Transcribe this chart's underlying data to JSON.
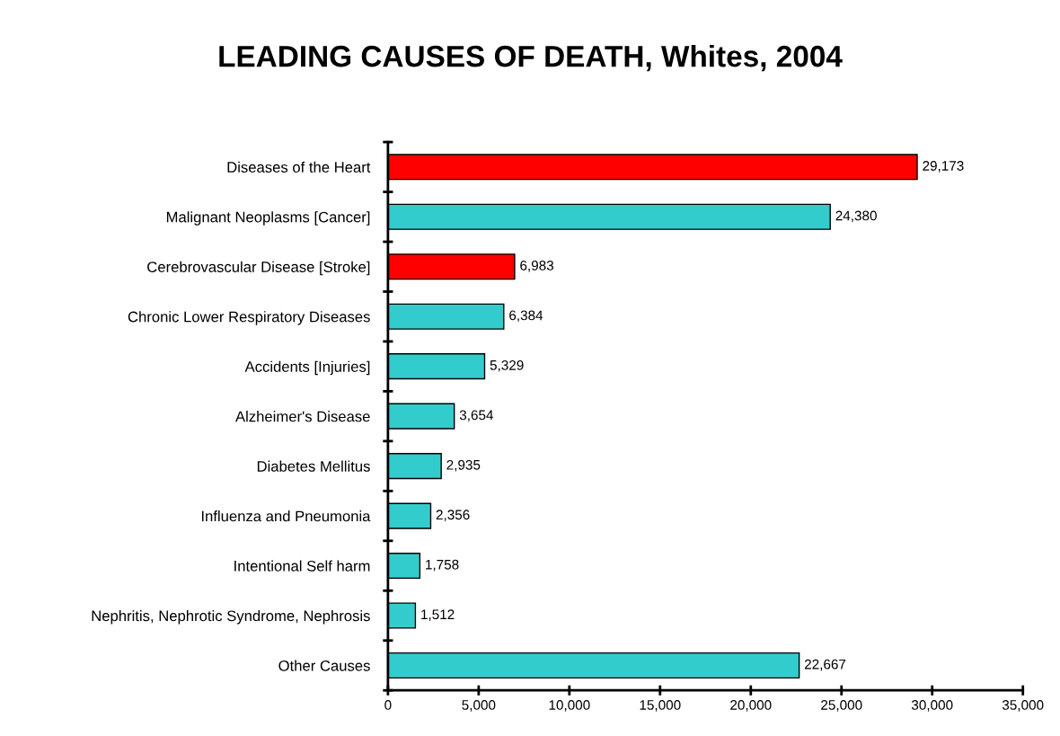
{
  "chart_data": {
    "type": "bar",
    "orientation": "horizontal",
    "title": "LEADING CAUSES OF DEATH, Whites, 2004",
    "categories": [
      "Diseases of the Heart",
      "Malignant Neoplasms [Cancer]",
      "Cerebrovascular Disease [Stroke]",
      "Chronic Lower Respiratory Diseases",
      "Accidents [Injuries]",
      "Alzheimer's Disease",
      "Diabetes Mellitus",
      "Influenza and Pneumonia",
      "Intentional Self harm",
      "Nephritis, Nephrotic Syndrome, Nephrosis",
      "Other Causes"
    ],
    "values": [
      29173,
      24380,
      6983,
      6384,
      5329,
      3654,
      2935,
      2356,
      1758,
      1512,
      22667
    ],
    "colors": [
      "#ff0000",
      "#33cccc",
      "#ff0000",
      "#33cccc",
      "#33cccc",
      "#33cccc",
      "#33cccc",
      "#33cccc",
      "#33cccc",
      "#33cccc",
      "#33cccc"
    ],
    "value_labels": [
      "29,173",
      "24,380",
      "6,983",
      "6,384",
      "5,329",
      "3,654",
      "2,935",
      "2,356",
      "1,758",
      "1,512",
      "22,667"
    ],
    "xlim": [
      0,
      35000
    ],
    "xticks": [
      0,
      {
        "value": 5000,
        "label": "5,000"
      },
      {
        "value": 10000,
        "label": "10,000"
      },
      {
        "value": 15000,
        "label": "15,000"
      },
      {
        "value": 20000,
        "label": "20,000"
      },
      {
        "value": 25000,
        "label": "25,000"
      },
      {
        "value": 30000,
        "label": "30,000"
      },
      {
        "value": 35000,
        "label": "35,000"
      }
    ],
    "grid": false,
    "legend": false
  }
}
